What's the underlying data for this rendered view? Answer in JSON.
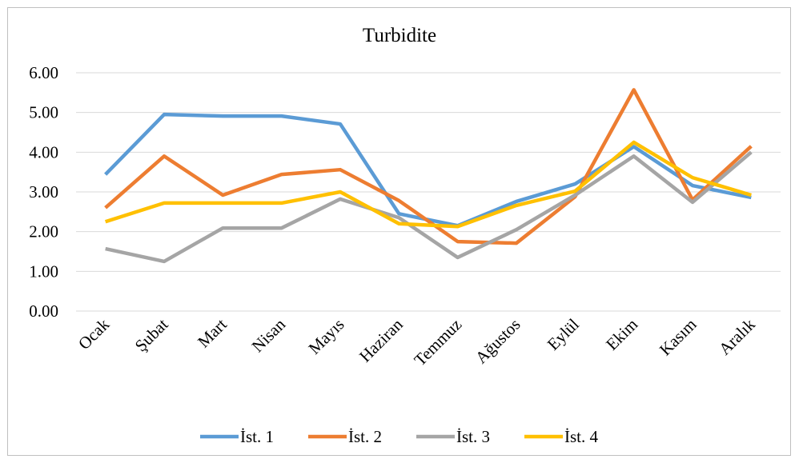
{
  "chart_data": {
    "type": "line",
    "title": "Turbidite",
    "categories": [
      "Ocak",
      "Şubat",
      "Mart",
      "Nisan",
      "Mayıs",
      "Haziran",
      "Temmuz",
      "Ağustos",
      "Eylül",
      "Ekim",
      "Kasım",
      "Aralık"
    ],
    "series": [
      {
        "name": "İst. 1",
        "color": "#5b9bd5",
        "values": [
          3.44,
          4.95,
          4.91,
          4.91,
          4.71,
          2.45,
          2.15,
          2.76,
          3.2,
          4.14,
          3.16,
          2.86
        ]
      },
      {
        "name": "İst. 2",
        "color": "#ed7d31",
        "values": [
          2.6,
          3.9,
          2.92,
          3.44,
          3.56,
          2.78,
          1.75,
          1.71,
          2.88,
          5.57,
          2.8,
          4.15
        ]
      },
      {
        "name": "İst. 3",
        "color": "#a5a5a5",
        "values": [
          1.57,
          1.25,
          2.09,
          2.09,
          2.82,
          2.35,
          1.35,
          2.05,
          2.92,
          3.9,
          2.74,
          4.0
        ]
      },
      {
        "name": "İst. 4",
        "color": "#ffc000",
        "values": [
          2.25,
          2.72,
          2.72,
          2.72,
          3.0,
          2.2,
          2.13,
          2.66,
          3.02,
          4.25,
          3.36,
          2.92
        ]
      }
    ],
    "ylim": [
      0,
      6
    ],
    "yticks": [
      {
        "value": 0,
        "label": "0.00"
      },
      {
        "value": 1,
        "label": "1.00"
      },
      {
        "value": 2,
        "label": "2.00"
      },
      {
        "value": 3,
        "label": "3.00"
      },
      {
        "value": 4,
        "label": "4.00"
      },
      {
        "value": 5,
        "label": "5.00"
      },
      {
        "value": 6,
        "label": "6.00"
      }
    ],
    "grid": true,
    "legend": "bottom"
  }
}
